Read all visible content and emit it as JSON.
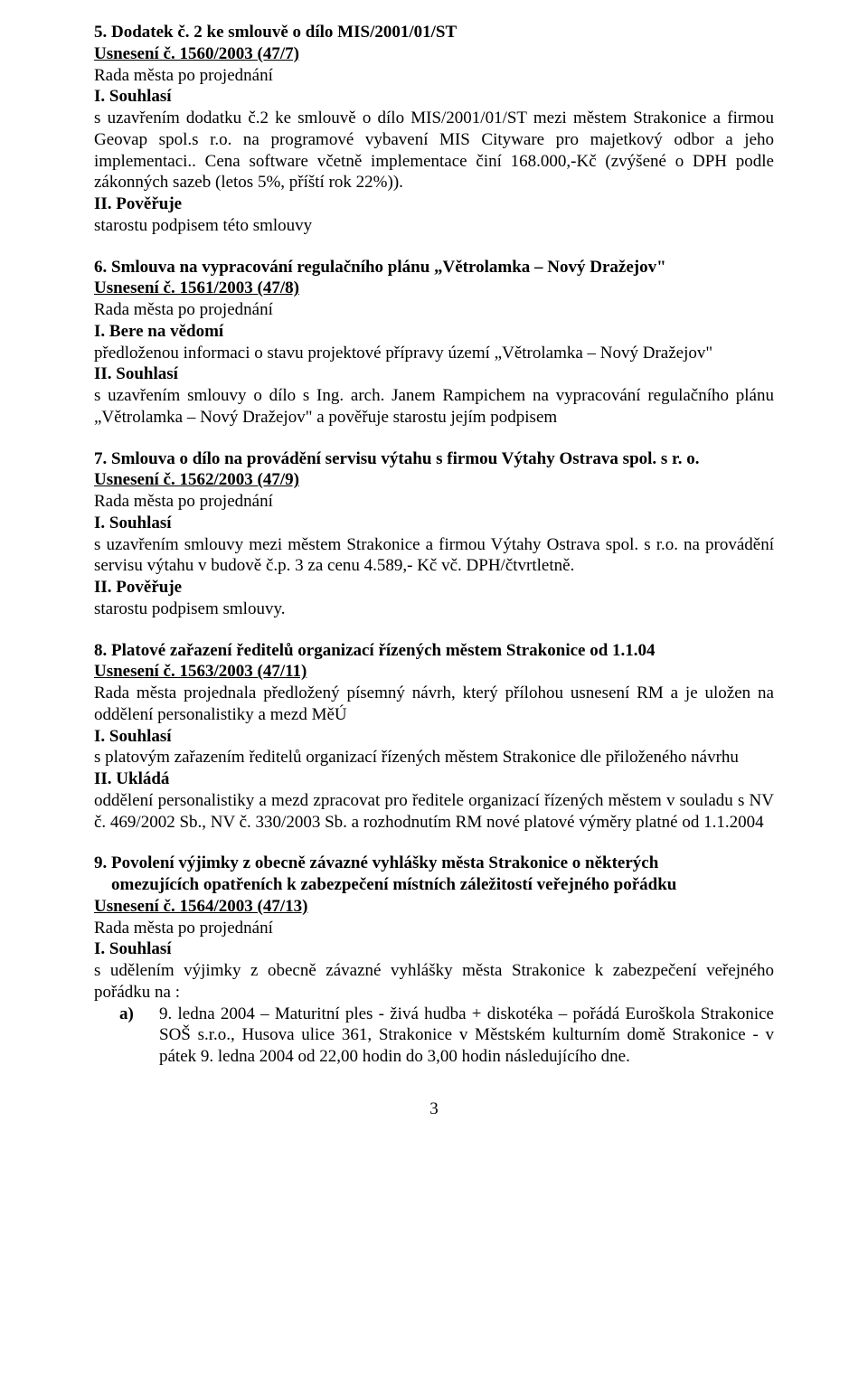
{
  "sections": {
    "s5": {
      "title": "5. Dodatek č. 2 ke smlouvě o dílo MIS/2001/01/ST",
      "usneseni": "Usnesení č. 1560/2003 (47/7)",
      "rada": "Rada města po projednání",
      "souhlasi": "I. Souhlasí",
      "souhlasi_body": "s uzavřením dodatku č.2 ke smlouvě o dílo MIS/2001/01/ST mezi městem Strakonice a firmou Geovap spol.s r.o. na programové vybavení MIS Cityware pro majetkový odbor a jeho implementaci.. Cena software včetně implementace činí 168.000,-Kč (zvýšené o DPH podle zákonných sazeb (letos 5%, příští rok 22%)).",
      "poveruje": "II. Pověřuje",
      "poveruje_body": "starostu podpisem této smlouvy"
    },
    "s6": {
      "title": "6. Smlouva na vypracování regulačního plánu „Větrolamka – Nový Dražejov\"",
      "usneseni": "Usnesení č. 1561/2003 (47/8)",
      "rada": "Rada města po projednání",
      "bere": "I. Bere na vědomí",
      "bere_body": "předloženou informaci o stavu projektové přípravy území „Větrolamka – Nový Dražejov\"",
      "souhlasi": "II. Souhlasí",
      "souhlasi_body": "s uzavřením smlouvy o dílo s Ing. arch. Janem Rampichem na vypracování regulačního plánu „Větrolamka – Nový Dražejov\" a pověřuje starostu jejím podpisem"
    },
    "s7": {
      "title": "7. Smlouva o dílo na provádění servisu výtahu s firmou Výtahy Ostrava spol. s r. o.",
      "usneseni": "Usnesení č. 1562/2003 (47/9)",
      "rada": "Rada města po projednání",
      "souhlasi": "I. Souhlasí",
      "souhlasi_body": "s uzavřením smlouvy mezi městem Strakonice a firmou Výtahy Ostrava spol. s r.o. na provádění servisu výtahu v budově č.p. 3 za cenu 4.589,- Kč vč. DPH/čtvrtletně.",
      "poveruje": "II. Pověřuje",
      "poveruje_body": "starostu podpisem smlouvy."
    },
    "s8": {
      "title": "8. Platové zařazení ředitelů organizací řízených městem Strakonice od 1.1.04",
      "usneseni": "Usnesení č. 1563/2003 (47/11)",
      "rada": "Rada města projednala předložený písemný návrh, který přílohou usnesení RM a je uložen na oddělení personalistiky a mezd MěÚ",
      "souhlasi": "I. Souhlasí",
      "souhlasi_body": "s platovým zařazením ředitelů organizací řízených městem Strakonice dle přiloženého návrhu",
      "uklada": "II. Ukládá",
      "uklada_body": "oddělení personalistiky a mezd zpracovat pro ředitele organizací řízených městem v souladu s NV č. 469/2002 Sb., NV č. 330/2003 Sb. a rozhodnutím RM nové platové výměry platné od 1.1.2004"
    },
    "s9": {
      "title1": "9. Povolení výjimky z obecně závazné vyhlášky města Strakonice o některých",
      "title2": "    omezujících opatřeních k zabezpečení místních záležitostí veřejného pořádku",
      "usneseni": "Usnesení č. 1564/2003 (47/13)",
      "rada": "Rada města po projednání",
      "souhlasi": "I. Souhlasí",
      "souhlasi_body": "s udělením výjimky z obecně závazné vyhlášky města Strakonice k zabezpečení veřejného pořádku na :",
      "item_a_marker": "a)",
      "item_a": "9. ledna 2004 – Maturitní ples  - živá hudba + diskotéka – pořádá Euroškola Strakonice SOŠ s.r.o., Husova ulice 361, Strakonice v Městském kulturním domě Strakonice - v pátek 9. ledna 2004 od 22,00 hodin do 3,00 hodin následujícího dne."
    }
  },
  "page_number": "3"
}
